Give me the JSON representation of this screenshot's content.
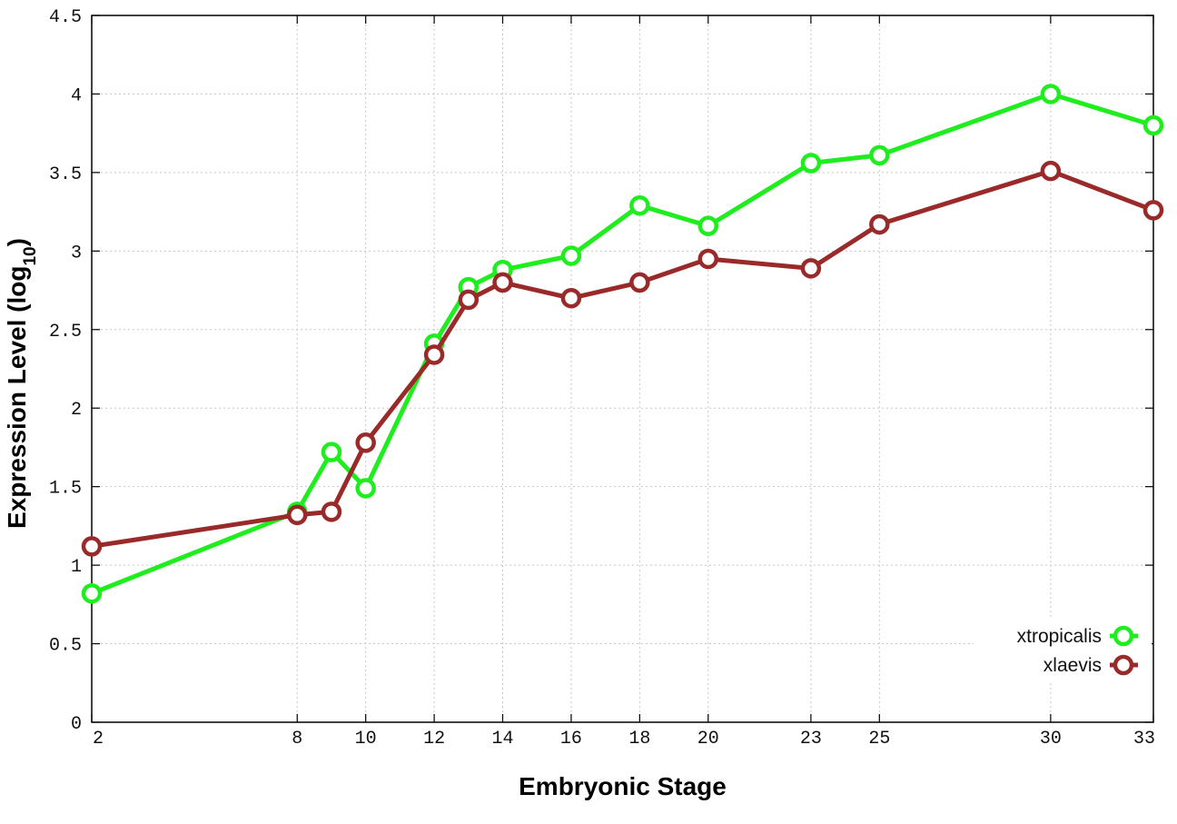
{
  "chart_data": {
    "type": "line",
    "xlabel": "Embryonic Stage",
    "ylabel_main": "Expression Level (log",
    "ylabel_sub": "10",
    "ylabel_close": ")",
    "xlim": [
      2,
      33
    ],
    "ylim": [
      0,
      4.5
    ],
    "grid": true,
    "legend_position": "bottom-right",
    "x_ticks": [
      2,
      8,
      10,
      12,
      14,
      16,
      18,
      20,
      23,
      25,
      30,
      33
    ],
    "y_ticks": [
      0,
      0.5,
      1,
      1.5,
      2,
      2.5,
      3,
      3.5,
      4,
      4.5
    ],
    "y_tick_labels": [
      "0",
      "0.5",
      "1",
      "1.5",
      "2",
      "2.5",
      "3",
      "3.5",
      "4",
      "4.5"
    ],
    "x": [
      2,
      8,
      9,
      10,
      12,
      13,
      14,
      16,
      18,
      20,
      23,
      25,
      30,
      33
    ],
    "series": [
      {
        "name": "xtropicalis",
        "color": "#1eee1e",
        "values": [
          0.82,
          1.34,
          1.72,
          1.49,
          2.41,
          2.77,
          2.88,
          2.97,
          3.29,
          3.16,
          3.56,
          3.61,
          4.0,
          3.8
        ]
      },
      {
        "name": "xlaevis",
        "color": "#9a2a2a",
        "values": [
          1.12,
          1.32,
          1.34,
          1.78,
          2.34,
          2.69,
          2.8,
          2.7,
          2.8,
          2.95,
          2.89,
          3.17,
          3.51,
          3.26
        ]
      }
    ]
  }
}
